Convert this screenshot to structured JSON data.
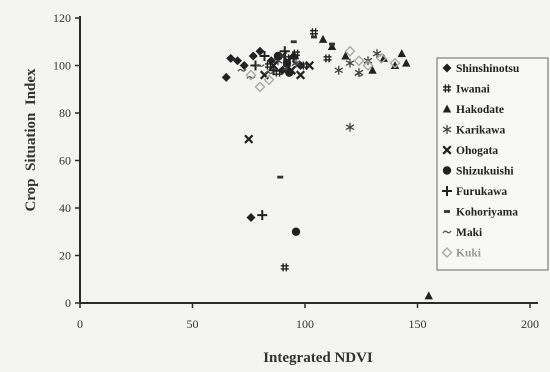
{
  "chart_data": {
    "type": "scatter",
    "xlabel": "Integrated NDVI",
    "ylabel": "Crop  Situation  Index",
    "xlim": [
      0,
      200
    ],
    "ylim": [
      0,
      120
    ],
    "x_ticks": [
      "0",
      "50",
      "100",
      "150",
      "200"
    ],
    "y_ticks": [
      "0",
      "20",
      "40",
      "60",
      "80",
      "100",
      "120"
    ],
    "grid": false,
    "legend_position": "right",
    "series": [
      {
        "name": "Shinshinotsu",
        "marker": "diamond",
        "color": "#222222",
        "points": [
          [
            65,
            95
          ],
          [
            67,
            103
          ],
          [
            70,
            102
          ],
          [
            73,
            100
          ],
          [
            77,
            104
          ],
          [
            80,
            106
          ],
          [
            85,
            102
          ],
          [
            90,
            98
          ],
          [
            95,
            104
          ],
          [
            98,
            100
          ],
          [
            76,
            36
          ]
        ]
      },
      {
        "name": "Iwanai",
        "marker": "hash",
        "color": "#222222",
        "points": [
          [
            84,
            100
          ],
          [
            88,
            97
          ],
          [
            92,
            103
          ],
          [
            96,
            105
          ],
          [
            100,
            100
          ],
          [
            104,
            114
          ],
          [
            110,
            103
          ],
          [
            91,
            15
          ]
        ]
      },
      {
        "name": "Hakodate",
        "marker": "triangle",
        "color": "#222222",
        "points": [
          [
            108,
            111
          ],
          [
            112,
            108
          ],
          [
            118,
            104
          ],
          [
            130,
            98
          ],
          [
            135,
            103
          ],
          [
            140,
            100
          ],
          [
            143,
            105
          ],
          [
            145,
            101
          ],
          [
            155,
            3
          ]
        ]
      },
      {
        "name": "Karikawa",
        "marker": "asterisk",
        "color": "#444444",
        "points": [
          [
            88,
            102
          ],
          [
            92,
            99
          ],
          [
            96,
            101
          ],
          [
            115,
            98
          ],
          [
            120,
            101
          ],
          [
            124,
            97
          ],
          [
            128,
            102
          ],
          [
            132,
            105
          ],
          [
            120,
            74
          ]
        ]
      },
      {
        "name": "Ohogata",
        "marker": "x",
        "color": "#222222",
        "points": [
          [
            82,
            96
          ],
          [
            86,
            100
          ],
          [
            90,
            104
          ],
          [
            94,
            98
          ],
          [
            98,
            96
          ],
          [
            102,
            100
          ],
          [
            75,
            69
          ]
        ]
      },
      {
        "name": "Shizukuishi",
        "marker": "circle",
        "color": "#222222",
        "points": [
          [
            88,
            104
          ],
          [
            92,
            101
          ],
          [
            93,
            97
          ],
          [
            96,
            30
          ]
        ]
      },
      {
        "name": "Furukawa",
        "marker": "plus",
        "color": "#222222",
        "points": [
          [
            78,
            100
          ],
          [
            82,
            104
          ],
          [
            86,
            98
          ],
          [
            91,
            106
          ],
          [
            95,
            103
          ],
          [
            81,
            37
          ]
        ]
      },
      {
        "name": "Kohoriyama",
        "marker": "square",
        "color": "#333333",
        "points": [
          [
            90,
            104
          ],
          [
            95,
            110
          ],
          [
            104,
            112
          ],
          [
            112,
            109
          ],
          [
            89,
            53
          ]
        ]
      },
      {
        "name": "Maki",
        "marker": "tilde",
        "color": "#555555",
        "points": [
          [
            72,
            98
          ],
          [
            76,
            95
          ],
          [
            80,
            100
          ],
          [
            84,
            97
          ],
          [
            124,
            96
          ]
        ]
      },
      {
        "name": "Kuki",
        "marker": "diamond-open",
        "color": "#aaaaaa",
        "points": [
          [
            76,
            96
          ],
          [
            80,
            91
          ],
          [
            84,
            94
          ],
          [
            120,
            106
          ],
          [
            124,
            102
          ],
          [
            128,
            100
          ],
          [
            134,
            103
          ],
          [
            140,
            101
          ]
        ]
      }
    ]
  }
}
